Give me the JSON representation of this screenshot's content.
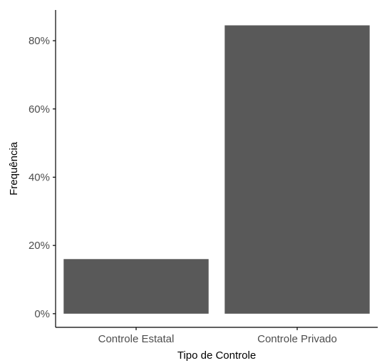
{
  "chart_data": {
    "type": "bar",
    "categories": [
      "Controle Estatal",
      "Controle Privado"
    ],
    "values": [
      0.16,
      0.845
    ],
    "xlabel": "Tipo de Controle",
    "ylabel": "Frequência",
    "ylim": [
      -0.04,
      0.89
    ],
    "yticks": [
      0,
      0.2,
      0.4,
      0.6,
      0.8
    ],
    "ytick_labels": [
      "0%",
      "20%",
      "40%",
      "60%",
      "80%"
    ],
    "grid": false,
    "bar_color": "#595959",
    "axis_color": "#000000",
    "tick_label_color": "#4d4d4d"
  }
}
